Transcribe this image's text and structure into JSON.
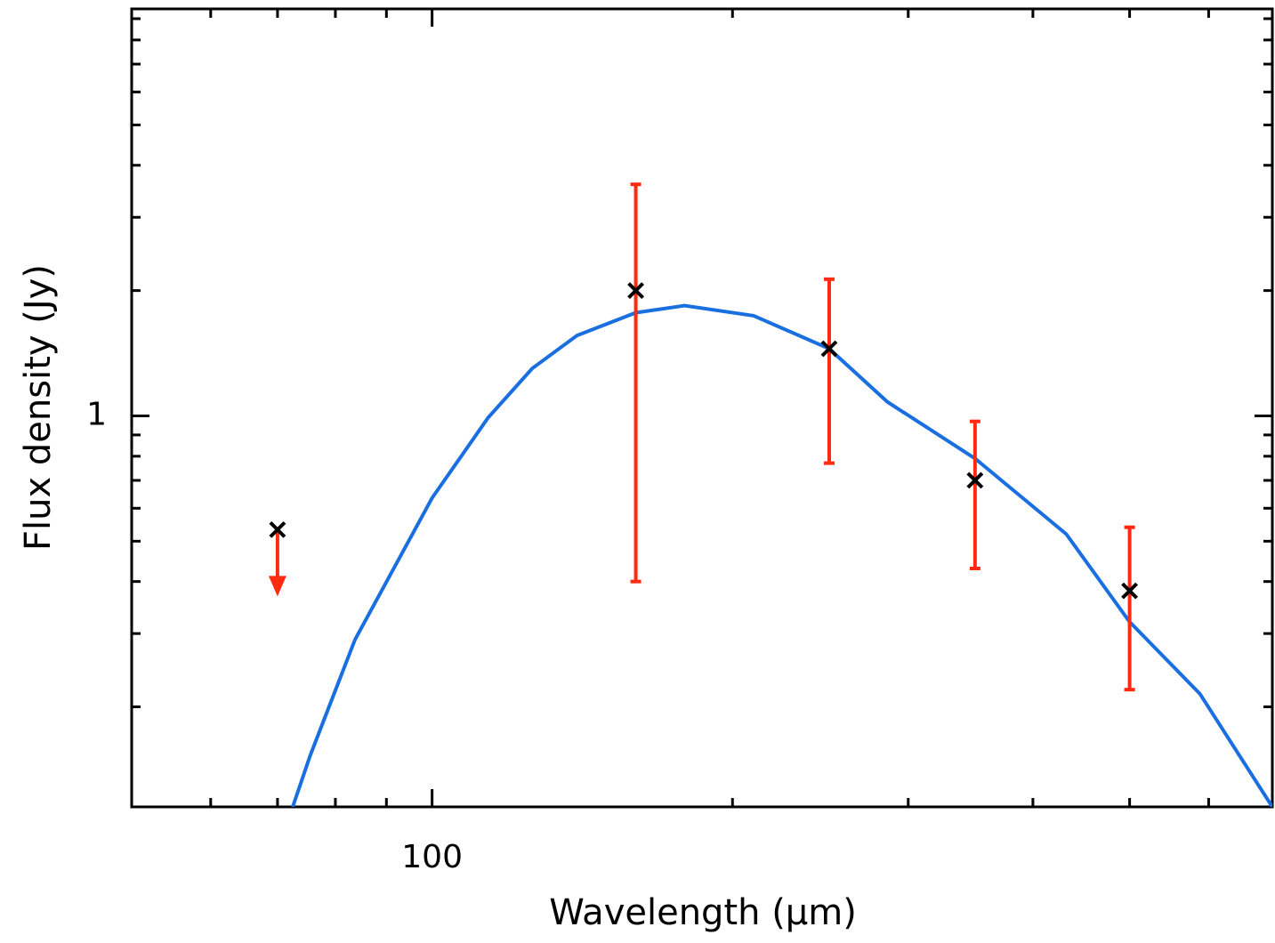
{
  "chart_data": {
    "type": "scatter",
    "xlabel": "Wavelength (μm)",
    "ylabel": "Flux density (Jy)",
    "xscale": "log",
    "yscale": "log",
    "xlim": [
      50,
      695
    ],
    "ylim": [
      0.115,
      9.5
    ],
    "xticks": [
      100
    ],
    "yticks": [
      1
    ],
    "xminorticks": [
      60,
      70,
      80,
      90,
      200,
      300,
      400,
      500,
      600
    ],
    "yminorticks": [
      0.2,
      0.3,
      0.4,
      0.5,
      0.6,
      0.7,
      0.8,
      0.9,
      2,
      3,
      4,
      5,
      6,
      7,
      8,
      9
    ],
    "points": {
      "x": [
        160,
        250,
        350,
        500
      ],
      "values": [
        2.0,
        1.45,
        0.7,
        0.38
      ],
      "errors": [
        1.6,
        0.68,
        0.27,
        0.16
      ],
      "color": "#000000",
      "error_color": "#ff2a10"
    },
    "upper_limits": {
      "x": [
        70
      ],
      "values": [
        0.533
      ],
      "color": "#000000",
      "arrow_color": "#ff2a10"
    },
    "model": {
      "x": [
        72.5,
        75.5,
        83.7,
        100,
        113.8,
        126,
        139.7,
        160,
        179,
        210,
        250,
        286,
        350,
        432,
        500,
        588,
        695
      ],
      "values": [
        0.115,
        0.153,
        0.29,
        0.635,
        0.99,
        1.3,
        1.56,
        1.77,
        1.84,
        1.74,
        1.45,
        1.08,
        0.79,
        0.52,
        0.32,
        0.215,
        0.115
      ],
      "color": "#1a6fe0"
    }
  }
}
